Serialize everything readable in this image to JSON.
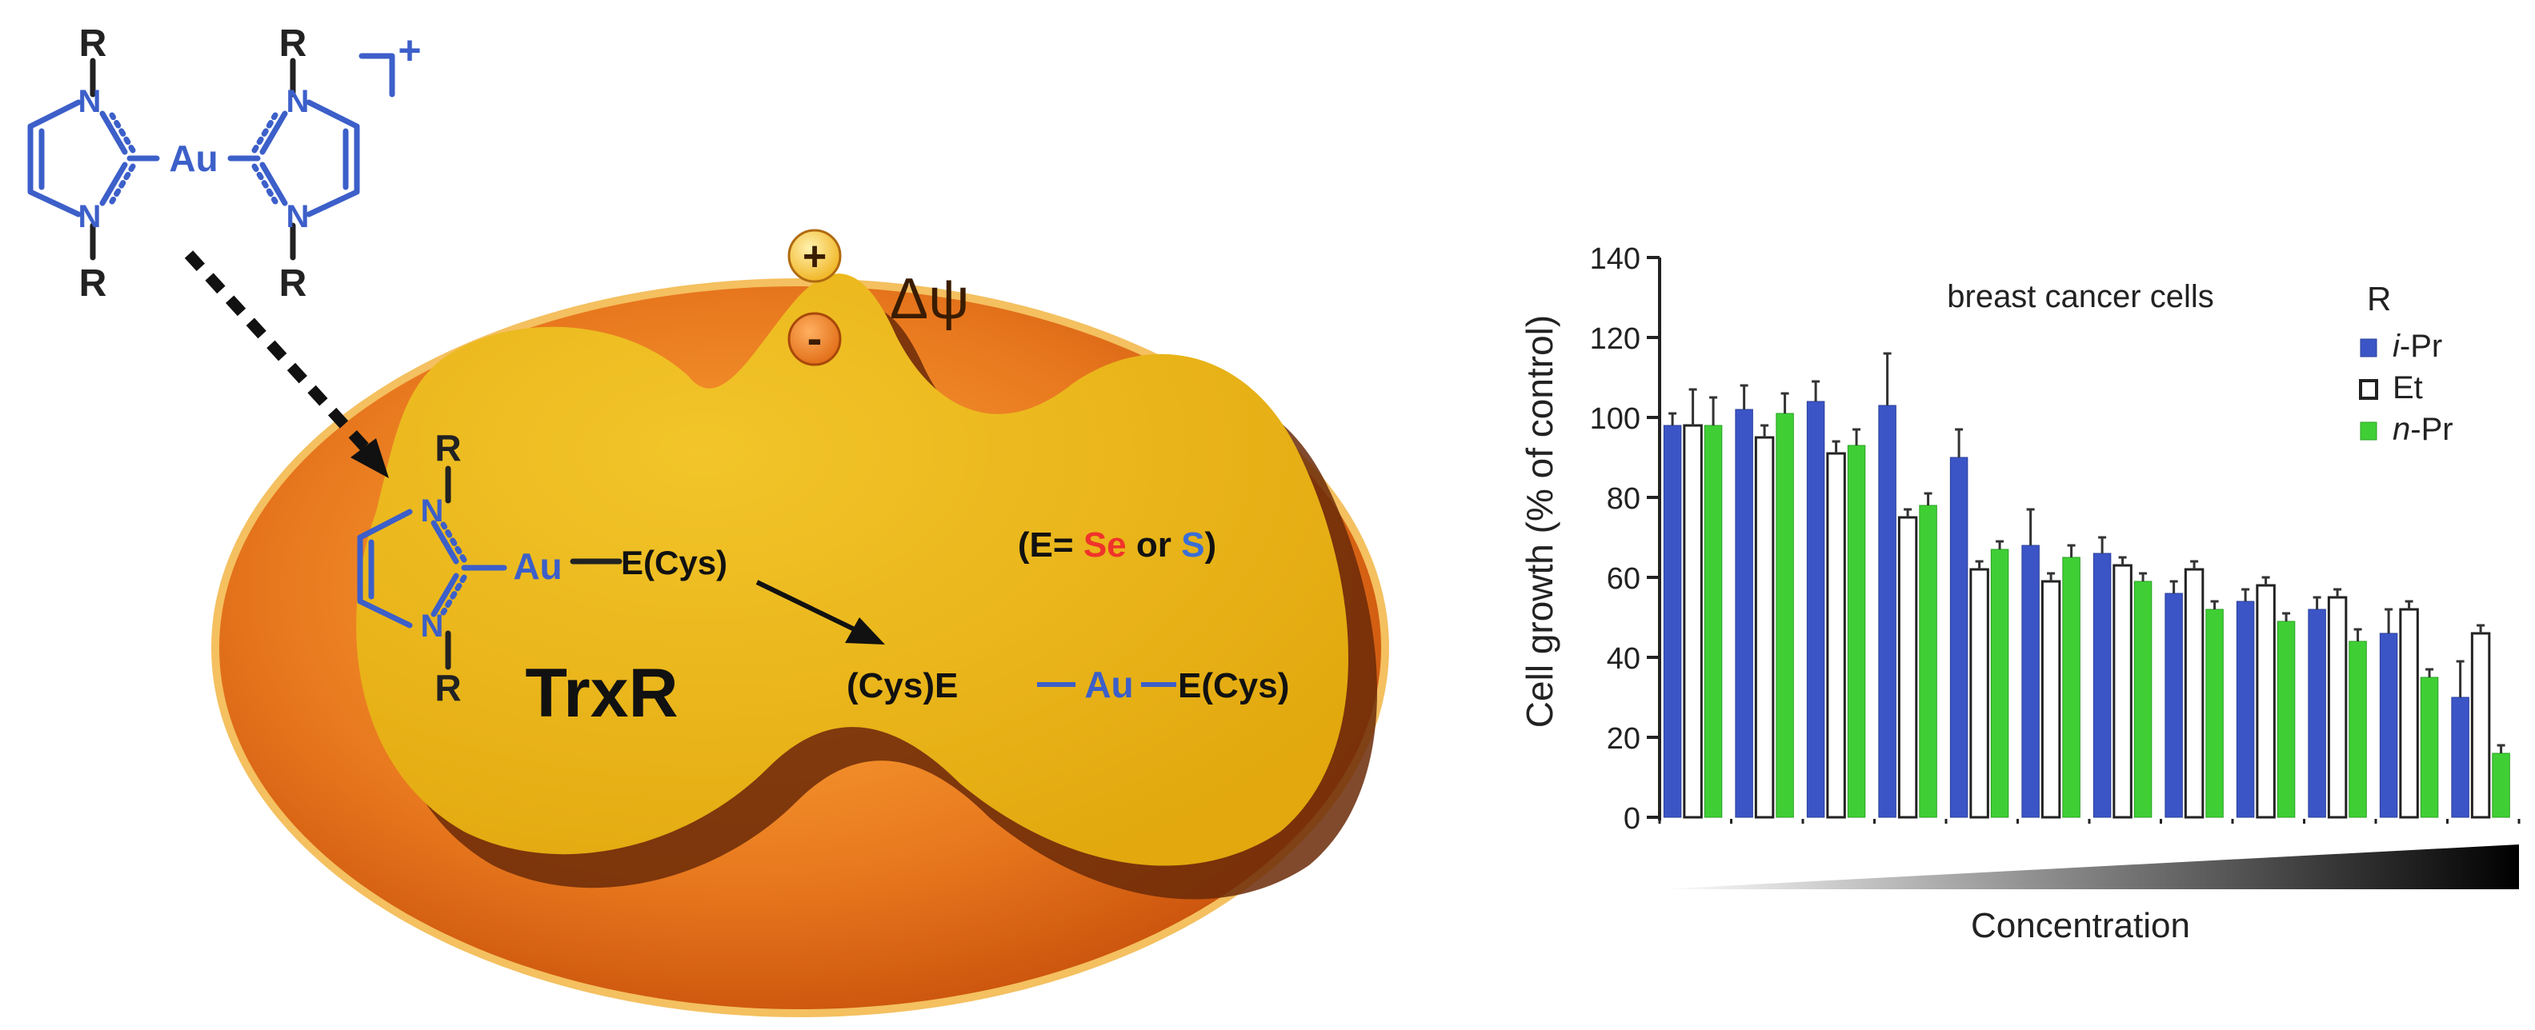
{
  "colors": {
    "outer": "#e8781e",
    "outer_rim": "#f6c35a",
    "cell": "#e8b515",
    "cell_shadow": "#6b2a08",
    "ligand": "#3c5fc9",
    "selenium": "#f0332b",
    "sulfur": "#3a6ed6",
    "ipr": "#3b55c6",
    "et": "#ffffff",
    "npr": "#3fcf35"
  },
  "complex": {
    "r_top_left": "R",
    "r_top_right": "R",
    "r_bottom_left": "R",
    "r_bottom_right": "R",
    "n_labels": [
      "N",
      "N",
      "N",
      "N"
    ],
    "metal": "Au",
    "charge": "+"
  },
  "membrane": {
    "plus": "+",
    "minus": "-",
    "potential": "Δψ"
  },
  "adduct": {
    "r_top": "R",
    "r_bottom": "R",
    "n_labels": [
      "N",
      "N"
    ],
    "metal": "Au",
    "thiol": "E(Cys)"
  },
  "enzyme_label": "TrxR",
  "element_note": {
    "open": "(E= ",
    "se": "Se",
    "or": " or ",
    "s": "S",
    "close": ")"
  },
  "product": {
    "left": "(Cys)E",
    "metal": "Au",
    "right": "E(Cys)"
  },
  "chart_data": {
    "type": "bar",
    "title": "breast cancer cells",
    "xlabel": "Concentration",
    "ylabel": "Cell growth (% of control)",
    "ylim": [
      0,
      140
    ],
    "yticks": [
      0,
      20,
      40,
      60,
      80,
      100,
      120,
      140
    ],
    "legend_title": "R",
    "legend_placement": "top-right",
    "series": [
      {
        "name_prefix": "i",
        "name_suffix": "-Pr",
        "color": "#3b55c6",
        "values": [
          98,
          102,
          104,
          103,
          90,
          68,
          66,
          56,
          54,
          52,
          46,
          30
        ],
        "errors": [
          3,
          6,
          5,
          13,
          7,
          9,
          4,
          3,
          3,
          3,
          6,
          9
        ]
      },
      {
        "name_prefix": "",
        "name_suffix": "Et",
        "color": "#ffffff",
        "values": [
          98,
          95,
          91,
          75,
          62,
          59,
          63,
          62,
          58,
          55,
          52,
          46
        ],
        "errors": [
          9,
          3,
          3,
          2,
          2,
          2,
          2,
          2,
          2,
          2,
          2,
          2
        ]
      },
      {
        "name_prefix": "n",
        "name_suffix": "-Pr",
        "color": "#3fcf35",
        "values": [
          98,
          101,
          93,
          78,
          67,
          65,
          59,
          52,
          49,
          44,
          35,
          16
        ],
        "errors": [
          7,
          5,
          4,
          3,
          2,
          3,
          2,
          2,
          2,
          3,
          2,
          2
        ]
      }
    ]
  }
}
